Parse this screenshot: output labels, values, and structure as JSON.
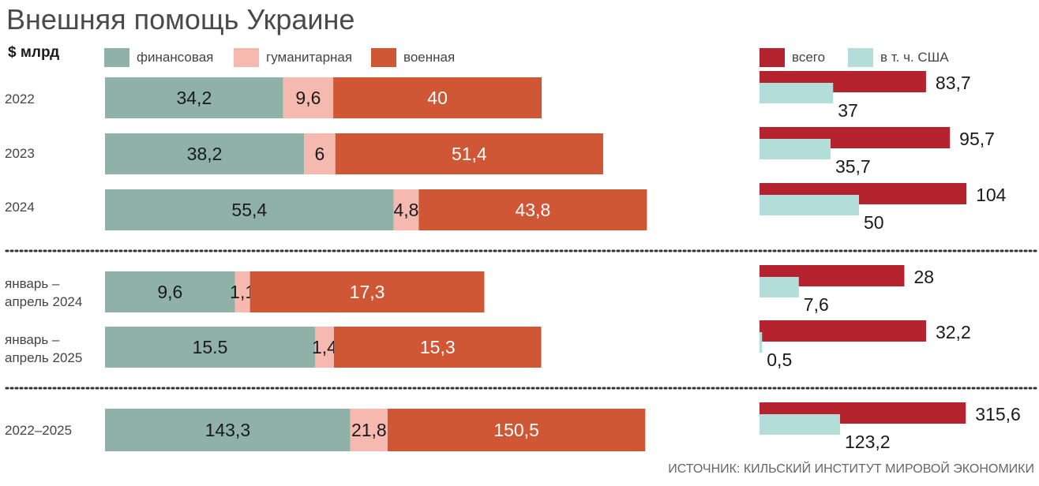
{
  "header": {
    "title": "Внешняя помощь Украине",
    "unit": "$ млрд"
  },
  "legend_left": [
    {
      "label": "финансовая",
      "color": "#8fb1a8"
    },
    {
      "label": "гуманитарная",
      "color": "#f5b9b0"
    },
    {
      "label": "военная",
      "color": "#cf5735"
    }
  ],
  "legend_right": [
    {
      "label": "всего",
      "color": "#b5232f"
    },
    {
      "label": "в т. ч. США",
      "color": "#b3ddd9"
    }
  ],
  "source": "ИСТОЧНИК: КИЛЬСКИЙ ИНСТИТУТ МИРОВОЙ ЭКОНОМИКИ",
  "chart_data": [
    {
      "type": "bar",
      "orientation": "horizontal",
      "stacked": true,
      "categories": [
        "2022",
        "2023",
        "2024",
        "январь –\nапрель 2024",
        "январь –\nапрель 2025",
        "2022–2025"
      ],
      "series": [
        {
          "name": "финансовая",
          "values": [
            34.2,
            38.2,
            55.4,
            9.6,
            15.5,
            143.3
          ],
          "labels": [
            "34,2",
            "38,2",
            "55,4",
            "9,6",
            "15.5",
            "143,3"
          ]
        },
        {
          "name": "гуманитарная",
          "values": [
            9.6,
            6,
            4.8,
            1.1,
            1.4,
            21.8
          ],
          "labels": [
            "9,6",
            "6",
            "4,8",
            "1,1",
            "1,4",
            "21,8"
          ]
        },
        {
          "name": "военная",
          "values": [
            40,
            51.4,
            43.8,
            17.3,
            15.3,
            150.5
          ],
          "labels": [
            "40",
            "51,4",
            "43,8",
            "17,3",
            "15,3",
            "150,5"
          ]
        }
      ]
    },
    {
      "type": "bar",
      "orientation": "horizontal",
      "stacked": false,
      "categories": [
        "2022",
        "2023",
        "2024",
        "январь –\nапрель 2024",
        "январь –\nапрель 2025",
        "2022–2025"
      ],
      "series": [
        {
          "name": "всего",
          "values": [
            83.7,
            95.7,
            104,
            28,
            32.2,
            315.6
          ],
          "labels": [
            "83,7",
            "95,7",
            "104",
            "28",
            "32,2",
            "315,6"
          ]
        },
        {
          "name": "в т. ч. США",
          "values": [
            37,
            35.7,
            50,
            7.6,
            0.5,
            123.2
          ],
          "labels": [
            "37",
            "35,7",
            "50",
            "7,6",
            "0,5",
            "123,2"
          ]
        }
      ]
    }
  ]
}
